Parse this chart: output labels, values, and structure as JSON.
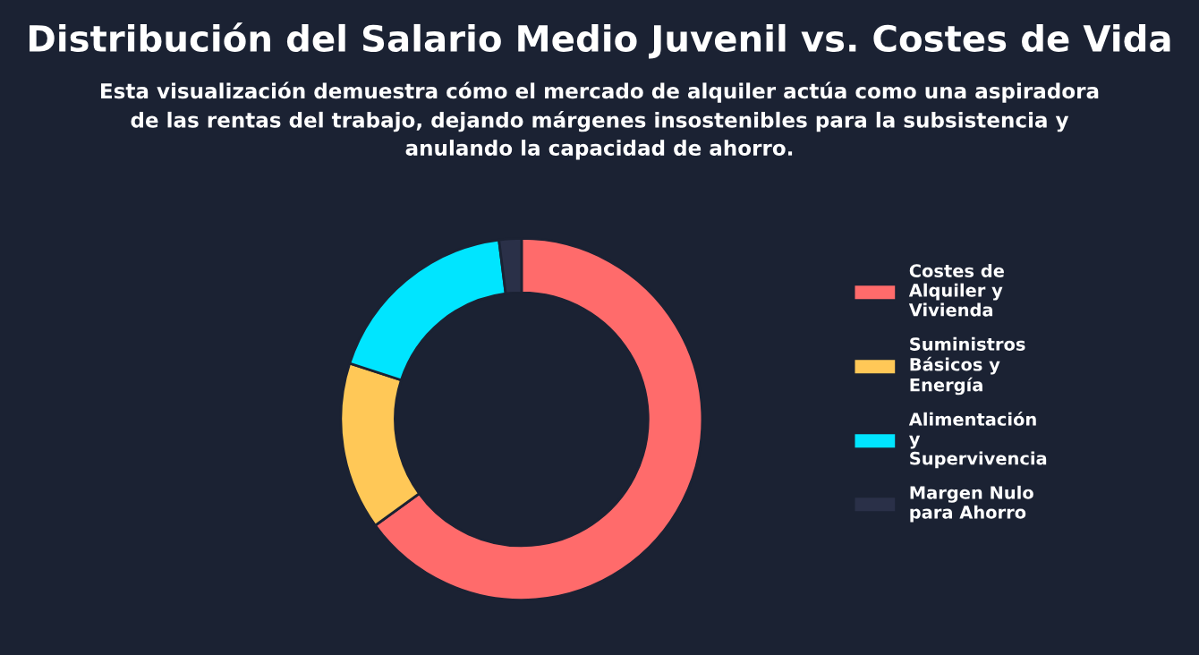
{
  "chart_data": {
    "type": "donut",
    "title": "Distribución del Salario Medio Juvenil vs. Costes de Vida",
    "subtitle": "Esta visualización demuestra cómo el mercado de alquiler actúa como una aspiradora de las rentas del trabajo, dejando márgenes insostenibles para la subsistencia y anulando la capacidad de ahorro.",
    "categories": [
      "Costes de Alquiler y Vivienda",
      "Suministros Básicos y Energía",
      "Alimentación y Supervivencia",
      "Margen Nulo para Ahorro"
    ],
    "values": [
      65,
      15,
      18,
      2
    ],
    "colors": [
      "#ff6b6b",
      "#ffc857",
      "#00e5ff",
      "#2a3048"
    ],
    "legend": "right"
  }
}
